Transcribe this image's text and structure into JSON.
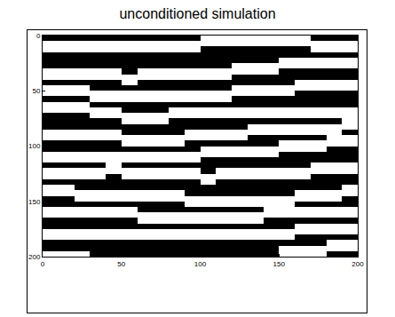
{
  "chart_data": {
    "type": "heatmap",
    "title": "unconditioned simulation",
    "x": [
      5,
      15,
      25,
      35,
      45,
      55,
      65,
      75,
      85,
      95,
      105,
      115,
      125,
      135,
      145,
      155,
      165,
      175,
      185,
      195
    ],
    "y": [
      2.5,
      7.5,
      12.5,
      17.5,
      22.5,
      27.5,
      32.5,
      37.5,
      42.5,
      47.5,
      52.5,
      57.5,
      62.5,
      67.5,
      72.5,
      77.5,
      82.5,
      87.5,
      92.5,
      97.5,
      102.5,
      107.5,
      112.5,
      117.5,
      122.5,
      127.5,
      132.5,
      137.5,
      142.5,
      147.5,
      152.5,
      157.5,
      162.5,
      167.5,
      172.5,
      177.5,
      182.5,
      187.5,
      192.5,
      197.5
    ],
    "z": [
      [
        0,
        0,
        0,
        0,
        0,
        0,
        0,
        0,
        0,
        0,
        1,
        1,
        1,
        1,
        1,
        1,
        1,
        0,
        0,
        0
      ],
      [
        1,
        1,
        1,
        1,
        1,
        1,
        1,
        1,
        1,
        1,
        1,
        1,
        1,
        1,
        1,
        1,
        1,
        1,
        1,
        1
      ],
      [
        1,
        1,
        1,
        1,
        1,
        1,
        1,
        1,
        1,
        1,
        0,
        0,
        0,
        0,
        0,
        0,
        0,
        1,
        1,
        1
      ],
      [
        0,
        0,
        0,
        0,
        0,
        0,
        0,
        0,
        0,
        0,
        0,
        0,
        0,
        0,
        0,
        0,
        0,
        0,
        0,
        0
      ],
      [
        0,
        0,
        0,
        0,
        0,
        0,
        0,
        0,
        0,
        0,
        0,
        0,
        0,
        0,
        0,
        1,
        1,
        1,
        1,
        1
      ],
      [
        0,
        0,
        0,
        0,
        0,
        0,
        0,
        0,
        0,
        0,
        0,
        0,
        1,
        1,
        1,
        1,
        1,
        1,
        1,
        1
      ],
      [
        1,
        1,
        1,
        1,
        1,
        0,
        1,
        1,
        1,
        1,
        1,
        1,
        1,
        1,
        1,
        0,
        0,
        0,
        0,
        0
      ],
      [
        1,
        1,
        1,
        1,
        1,
        1,
        1,
        1,
        1,
        1,
        1,
        1,
        0,
        0,
        0,
        0,
        0,
        0,
        0,
        0
      ],
      [
        0,
        0,
        0,
        0,
        0,
        1,
        0,
        0,
        0,
        0,
        0,
        0,
        0,
        0,
        0,
        0,
        1,
        1,
        1,
        1
      ],
      [
        1,
        1,
        1,
        0,
        0,
        0,
        0,
        0,
        0,
        0,
        0,
        0,
        1,
        1,
        1,
        1,
        1,
        1,
        1,
        1
      ],
      [
        1,
        1,
        1,
        1,
        1,
        1,
        1,
        1,
        1,
        1,
        1,
        1,
        1,
        1,
        1,
        1,
        0,
        0,
        0,
        0
      ],
      [
        0,
        0,
        0,
        1,
        1,
        1,
        1,
        1,
        1,
        1,
        1,
        1,
        0,
        0,
        0,
        0,
        0,
        0,
        0,
        0
      ],
      [
        1,
        1,
        1,
        0,
        0,
        0,
        0,
        0,
        0,
        0,
        0,
        0,
        0,
        0,
        0,
        0,
        0,
        0,
        0,
        0
      ],
      [
        1,
        1,
        1,
        1,
        1,
        0,
        0,
        0,
        1,
        1,
        1,
        1,
        1,
        1,
        1,
        1,
        1,
        1,
        1,
        1
      ],
      [
        0,
        0,
        0,
        1,
        1,
        1,
        1,
        1,
        1,
        1,
        1,
        1,
        1,
        1,
        1,
        1,
        1,
        1,
        1,
        1
      ],
      [
        0,
        0,
        0,
        0,
        0,
        1,
        1,
        1,
        0,
        0,
        0,
        0,
        0,
        0,
        0,
        0,
        0,
        0,
        0,
        1
      ],
      [
        0,
        0,
        0,
        0,
        0,
        0,
        0,
        0,
        0,
        0,
        0,
        0,
        0,
        1,
        1,
        1,
        1,
        1,
        1,
        1
      ],
      [
        1,
        1,
        1,
        1,
        1,
        0,
        0,
        0,
        0,
        1,
        1,
        1,
        1,
        1,
        1,
        1,
        1,
        1,
        1,
        0
      ],
      [
        1,
        1,
        1,
        1,
        1,
        1,
        1,
        1,
        1,
        1,
        1,
        1,
        1,
        0,
        0,
        0,
        0,
        0,
        1,
        1
      ],
      [
        0,
        0,
        0,
        0,
        0,
        1,
        1,
        1,
        1,
        0,
        0,
        0,
        0,
        0,
        0,
        1,
        1,
        1,
        1,
        1
      ],
      [
        0,
        0,
        0,
        0,
        0,
        0,
        0,
        0,
        0,
        0,
        1,
        1,
        1,
        1,
        1,
        1,
        1,
        1,
        0,
        0
      ],
      [
        1,
        1,
        1,
        1,
        1,
        1,
        1,
        1,
        1,
        1,
        1,
        1,
        1,
        1,
        1,
        0,
        0,
        0,
        0,
        0
      ],
      [
        1,
        1,
        1,
        1,
        1,
        1,
        1,
        1,
        1,
        1,
        0,
        0,
        0,
        0,
        0,
        0,
        0,
        0,
        0,
        0
      ],
      [
        0,
        0,
        0,
        0,
        1,
        0,
        0,
        0,
        0,
        0,
        0,
        0,
        0,
        0,
        0,
        0,
        0,
        1,
        1,
        1
      ],
      [
        1,
        1,
        1,
        1,
        1,
        1,
        1,
        1,
        1,
        1,
        0,
        1,
        1,
        1,
        1,
        1,
        1,
        1,
        1,
        1
      ],
      [
        1,
        1,
        1,
        1,
        0,
        1,
        1,
        1,
        1,
        1,
        1,
        1,
        1,
        1,
        1,
        1,
        1,
        0,
        0,
        0
      ],
      [
        0,
        0,
        0,
        0,
        0,
        0,
        0,
        0,
        0,
        0,
        1,
        0,
        0,
        0,
        0,
        0,
        0,
        0,
        0,
        0
      ],
      [
        1,
        1,
        0,
        0,
        0,
        0,
        0,
        0,
        0,
        0,
        0,
        0,
        0,
        0,
        0,
        0,
        0,
        0,
        0,
        1
      ],
      [
        1,
        1,
        1,
        1,
        1,
        1,
        1,
        1,
        1,
        0,
        0,
        0,
        0,
        0,
        0,
        0,
        1,
        1,
        1,
        1
      ],
      [
        0,
        0,
        1,
        1,
        1,
        1,
        1,
        1,
        1,
        1,
        1,
        1,
        1,
        1,
        1,
        1,
        1,
        1,
        1,
        0
      ],
      [
        0,
        0,
        0,
        0,
        0,
        0,
        0,
        0,
        0,
        1,
        1,
        1,
        1,
        1,
        1,
        1,
        0,
        0,
        0,
        0
      ],
      [
        1,
        1,
        1,
        1,
        1,
        1,
        0,
        0,
        0,
        0,
        0,
        0,
        0,
        0,
        1,
        1,
        1,
        1,
        1,
        1
      ],
      [
        1,
        1,
        1,
        1,
        1,
        1,
        1,
        1,
        1,
        1,
        1,
        1,
        1,
        1,
        1,
        1,
        1,
        1,
        1,
        1
      ],
      [
        0,
        0,
        0,
        0,
        0,
        0,
        1,
        1,
        1,
        1,
        1,
        1,
        1,
        1,
        0,
        0,
        0,
        0,
        0,
        0
      ],
      [
        0,
        0,
        0,
        0,
        0,
        0,
        0,
        0,
        0,
        0,
        0,
        0,
        0,
        0,
        0,
        0,
        1,
        1,
        1,
        1
      ],
      [
        1,
        1,
        1,
        1,
        1,
        1,
        1,
        1,
        1,
        1,
        1,
        1,
        1,
        1,
        1,
        1,
        1,
        1,
        1,
        1
      ],
      [
        1,
        1,
        1,
        1,
        1,
        1,
        1,
        1,
        1,
        1,
        1,
        1,
        1,
        1,
        1,
        1,
        0,
        0,
        0,
        0
      ],
      [
        0,
        0,
        0,
        0,
        0,
        0,
        0,
        0,
        0,
        0,
        0,
        0,
        0,
        0,
        0,
        0,
        0,
        0,
        1,
        1
      ],
      [
        0,
        0,
        0,
        0,
        0,
        0,
        0,
        0,
        0,
        0,
        0,
        0,
        0,
        0,
        0,
        1,
        1,
        1,
        1,
        1
      ],
      [
        1,
        1,
        1,
        0,
        0,
        0,
        0,
        0,
        0,
        0,
        0,
        0,
        0,
        0,
        0,
        1,
        1,
        1,
        0,
        0
      ]
    ],
    "zlim": [
      0,
      1
    ],
    "colors": [
      "#000000",
      "#ffffff"
    ],
    "xlim": [
      0,
      200
    ],
    "xticks": [
      0,
      50,
      100,
      150,
      200
    ],
    "ylim": [
      200,
      0
    ],
    "yticks": [
      0,
      50,
      100,
      150,
      200
    ]
  }
}
